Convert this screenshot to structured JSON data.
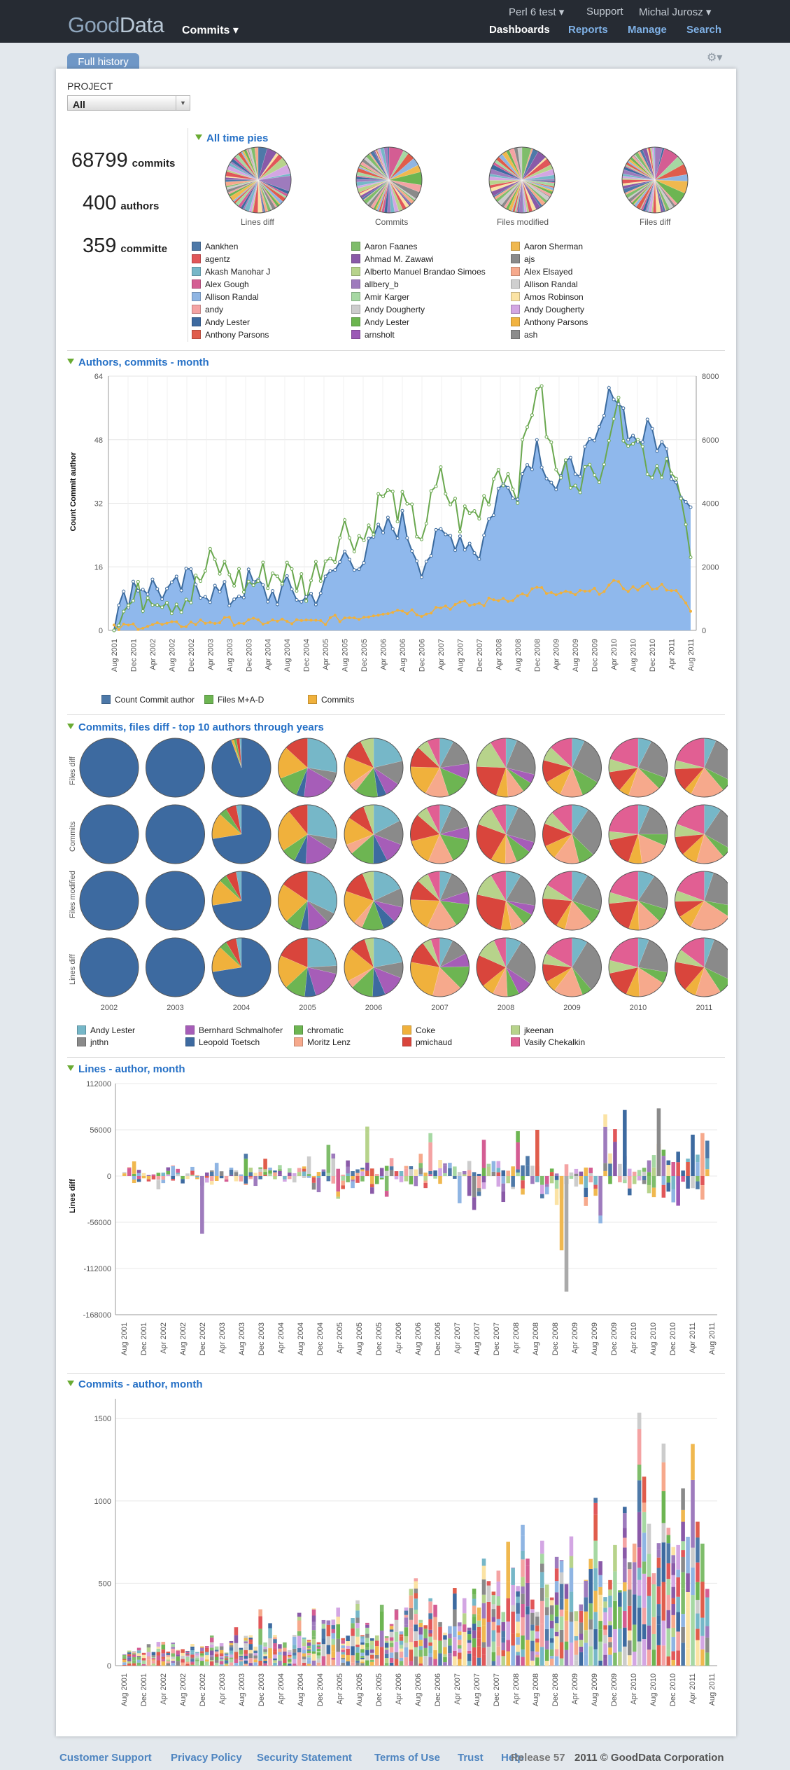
{
  "header": {
    "logo_a": "Good",
    "logo_b": "Data",
    "project": "Commits ▾",
    "top_links": [
      "Perl 6 test ▾",
      "Support",
      "Michal Jurosz ▾"
    ],
    "main_nav": [
      {
        "label": "Dashboards",
        "active": true
      },
      {
        "label": "Reports"
      },
      {
        "label": "Manage"
      },
      {
        "label": "Search"
      }
    ]
  },
  "tab": {
    "label": "Full history"
  },
  "filter": {
    "label": "PROJECT",
    "value": "All"
  },
  "kpis": [
    {
      "value": "68799",
      "label": "commits"
    },
    {
      "value": "400",
      "label": "authors"
    },
    {
      "value": "359",
      "label": "committe"
    }
  ],
  "pies_section": {
    "title": "All time pies",
    "captions": [
      "Lines diff",
      "Commits",
      "Files modified",
      "Files diff"
    ]
  },
  "author_legend": [
    [
      "Aankhen",
      "#4e79a8"
    ],
    [
      "agentz",
      "#e15759"
    ],
    [
      "Akash Manohar J",
      "#76b7c8"
    ],
    [
      "Alex Gough",
      "#d45d93"
    ],
    [
      "Allison Randal",
      "#8fb5e3"
    ],
    [
      "andy",
      "#f4a3a3"
    ],
    [
      "Andy Lester",
      "#3d6aa0"
    ],
    [
      "Anthony Parsons",
      "#e05d4c"
    ],
    [
      "Aaron Faanes",
      "#7fbd6b"
    ],
    [
      "Ahmad M. Zawawi",
      "#8a5aa8"
    ],
    [
      "Alberto Manuel Brandao Simoes",
      "#b7d38b"
    ],
    [
      "allbery_b",
      "#9e7bbd"
    ],
    [
      "Amir Karger",
      "#a6d8a3"
    ],
    [
      "Andy Dougherty",
      "#cccccc"
    ],
    [
      "Andy Lester",
      "#6bb54e"
    ],
    [
      "arnsholt",
      "#9b59b6"
    ],
    [
      "Aaron Sherman",
      "#f0b84f"
    ],
    [
      "ajs",
      "#8a8a8a"
    ],
    [
      "Alex Elsayed",
      "#f6a98c"
    ],
    [
      "Allison Randal",
      "#cfcfcf"
    ],
    [
      "Amos Robinson",
      "#fbe3a4"
    ],
    [
      "Andy Dougherty",
      "#d3a6e3"
    ],
    [
      "Anthony Parsons",
      "#f1b340"
    ],
    [
      "ash",
      "#8c8c8c"
    ]
  ],
  "line_section": {
    "title": "Authors, commits - month",
    "ylabel": "Count Commit author",
    "legend": [
      [
        "Count Commit author",
        "#4c78a8"
      ],
      [
        "Files M+A-D",
        "#6db552"
      ],
      [
        "Commits",
        "#f0b13c"
      ]
    ]
  },
  "months": [
    "Aug 2001",
    "Dec 2001",
    "Apr 2002",
    "Aug 2002",
    "Dec 2002",
    "Apr 2003",
    "Aug 2003",
    "Dec 2003",
    "Apr 2004",
    "Aug 2004",
    "Dec 2004",
    "Apr 2005",
    "Aug 2005",
    "Dec 2005",
    "Apr 2006",
    "Aug 2006",
    "Dec 2006",
    "Apr 2007",
    "Aug 2007",
    "Dec 2007",
    "Apr 2008",
    "Aug 2008",
    "Dec 2008",
    "Apr 2009",
    "Aug 2009",
    "Dec 2009",
    "Apr 2010",
    "Aug 2010",
    "Dec 2010",
    "Apr 2011",
    "Aug 2011"
  ],
  "chart_data": [
    {
      "type": "area",
      "title": "Authors, commits - month",
      "ylabel": "Count Commit author",
      "ylim": [
        0,
        64
      ],
      "y2lim": [
        0,
        8000
      ],
      "yticks": [
        "0",
        "16",
        "32",
        "48",
        "64"
      ],
      "y2ticks": [
        "0",
        "2000",
        "4000",
        "6000",
        "8000"
      ],
      "x": [
        "Aug 2001",
        "Dec 2001",
        "Apr 2002",
        "Aug 2002",
        "Dec 2002",
        "Apr 2003",
        "Aug 2003",
        "Dec 2003",
        "Apr 2004",
        "Aug 2004",
        "Dec 2004",
        "Apr 2005",
        "Aug 2005",
        "Dec 2005",
        "Apr 2006",
        "Aug 2006",
        "Dec 2006",
        "Apr 2007",
        "Aug 2007",
        "Dec 2007",
        "Apr 2008",
        "Aug 2008",
        "Dec 2008",
        "Apr 2009",
        "Aug 2009",
        "Dec 2009",
        "Apr 2010",
        "Aug 2010",
        "Dec 2010",
        "Apr 2011",
        "Aug 2011"
      ],
      "series": [
        {
          "name": "Count Commit author",
          "values": [
            2,
            12,
            11,
            9,
            13,
            10,
            8,
            12,
            9,
            10,
            8,
            11,
            19,
            18,
            25,
            27,
            17,
            23,
            24,
            20,
            35,
            37,
            47,
            36,
            42,
            45,
            62,
            48,
            50,
            42,
            31
          ]
        },
        {
          "name": "Files M+A-D",
          "values": [
            300,
            900,
            1300,
            1000,
            1100,
            2100,
            1800,
            1400,
            1800,
            1800,
            1400,
            2300,
            3200,
            2900,
            4300,
            3800,
            3100,
            4700,
            3500,
            3700,
            5200,
            4600,
            7900,
            4900,
            5000,
            4700,
            6900,
            6200,
            5100,
            5500,
            2300
          ]
        },
        {
          "name": "Commits",
          "values": [
            50,
            150,
            180,
            150,
            220,
            280,
            300,
            250,
            280,
            270,
            240,
            300,
            400,
            450,
            600,
            650,
            550,
            750,
            800,
            820,
            1000,
            1050,
            1300,
            1100,
            1150,
            1200,
            1450,
            1300,
            1400,
            1350,
            600
          ]
        }
      ]
    },
    {
      "type": "pie",
      "title": "Commits, files diff - top 10 authors through years",
      "rows": [
        "Files diff",
        "Commits",
        "Files modified",
        "Lines diff"
      ],
      "years": [
        "2002",
        "2003",
        "2004",
        "2005",
        "2006",
        "2007",
        "2008",
        "2009",
        "2010",
        "2011"
      ]
    },
    {
      "type": "bar",
      "title": "Lines - author, month",
      "ylabel": "Lines diff",
      "yticks": [
        "112000",
        "56000",
        "0",
        "-56000",
        "-112000",
        "-168000"
      ],
      "ylim": [
        -168000,
        112000
      ]
    },
    {
      "type": "bar",
      "title": "Commits - author, month",
      "yticks": [
        "0",
        "500",
        "1000",
        "1500"
      ],
      "ylim": [
        0,
        1500
      ]
    }
  ],
  "pies_grid": {
    "title": "Commits, files diff - top 10 authors through years",
    "rows": [
      "Files diff",
      "Commits",
      "Files modified",
      "Lines diff"
    ],
    "years": [
      "2002",
      "2003",
      "2004",
      "2005",
      "2006",
      "2007",
      "2008",
      "2009",
      "2010",
      "2011"
    ]
  },
  "top_legend": [
    [
      "Andy Lester",
      "#76b7c8"
    ],
    [
      "jnthn",
      "#8a8a8a"
    ],
    [
      "Bernhard Schmalhofer",
      "#a65db8"
    ],
    [
      "Leopold Toetsch",
      "#3d6aa0"
    ],
    [
      "chromatic",
      "#6db552"
    ],
    [
      "Moritz Lenz",
      "#f6a98c"
    ],
    [
      "Coke",
      "#f0b13c"
    ],
    [
      "pmichaud",
      "#d9453c"
    ],
    [
      "jkeenan",
      "#b7d38b"
    ],
    [
      "Vasily Chekalkin",
      "#e15f93"
    ]
  ],
  "lines_section": {
    "title": "Lines - author, month",
    "ylabel": "Lines diff",
    "yticks": [
      "112000",
      "56000",
      "0",
      "-56000",
      "-112000",
      "-168000"
    ]
  },
  "commits_section": {
    "title": "Commits - author, month",
    "yticks": [
      "0",
      "500",
      "1000",
      "1500"
    ]
  },
  "footer": {
    "links": [
      "Customer Support",
      "Privacy Policy",
      "Security Statement",
      "Terms of Use",
      "Trust",
      "Help"
    ],
    "release": "Release 57",
    "copyright": "2011 © GoodData Corporation"
  }
}
